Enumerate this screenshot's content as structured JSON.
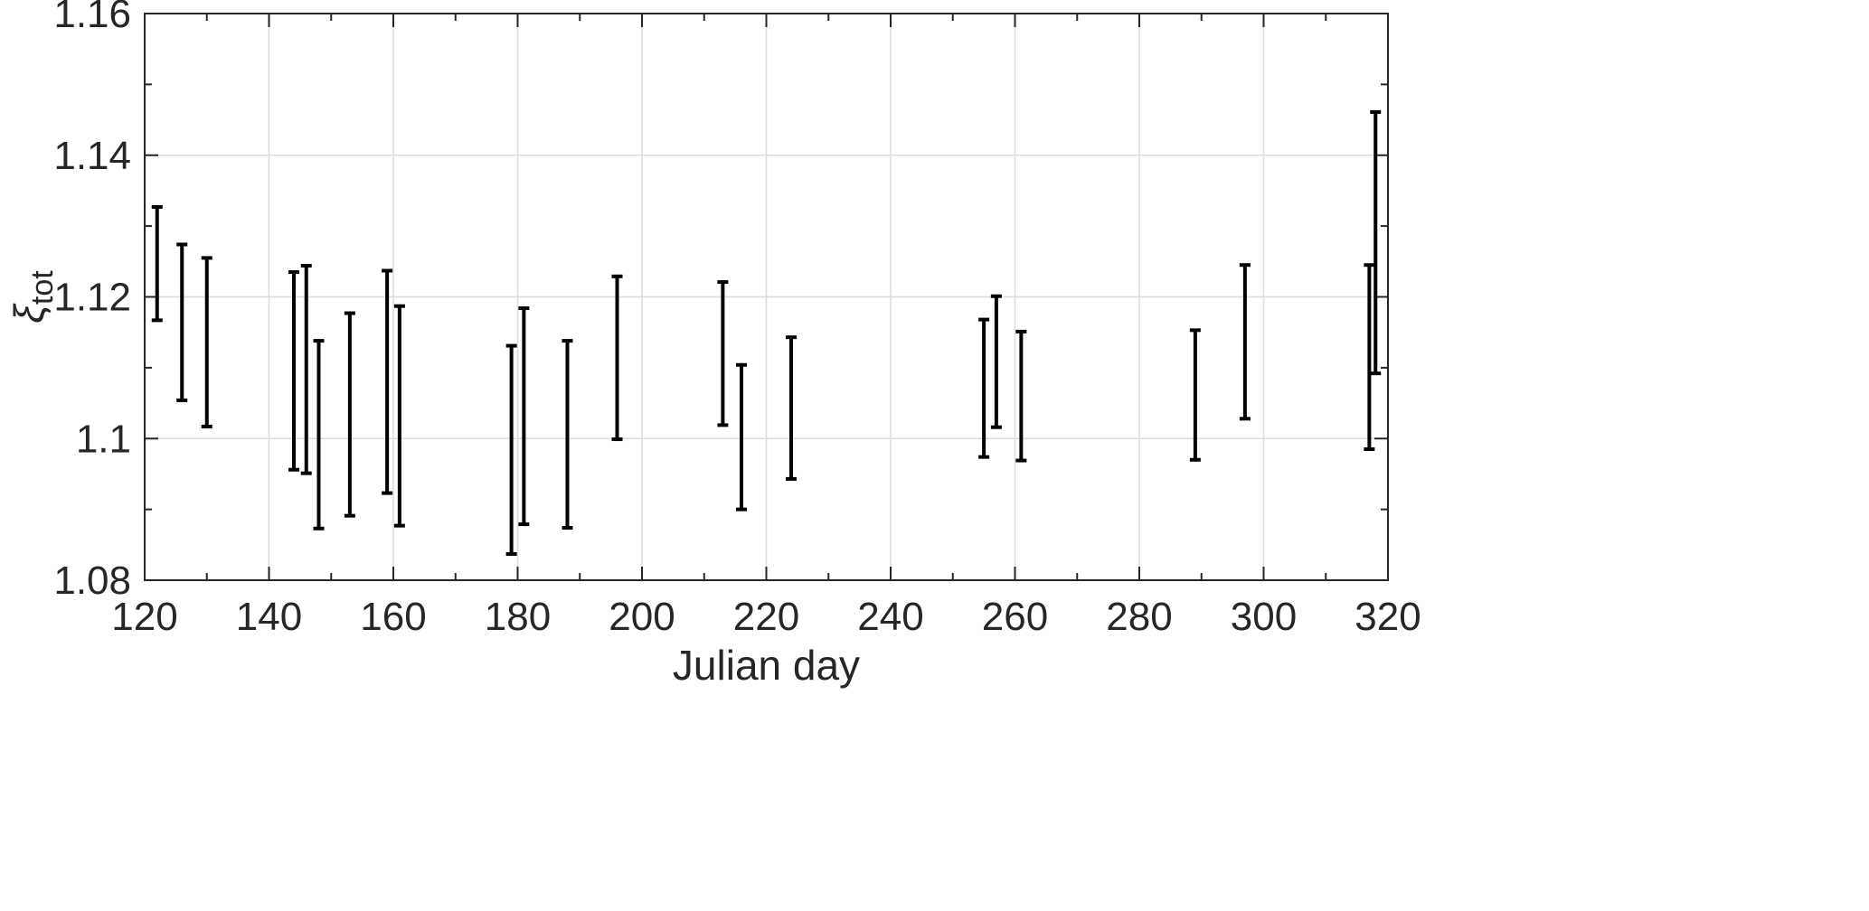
{
  "chart_data": {
    "type": "errorbar",
    "xlabel": "Julian day",
    "ylabel": {
      "symbol": "ξ",
      "subscript": "tot"
    },
    "xlim": [
      120,
      320
    ],
    "ylim": [
      1.08,
      1.16
    ],
    "xticks": [
      120,
      140,
      160,
      180,
      200,
      220,
      240,
      260,
      280,
      300,
      320
    ],
    "yticks": [
      1.08,
      1.1,
      1.12,
      1.14,
      1.16
    ],
    "xtick_labels": [
      "120",
      "140",
      "160",
      "180",
      "200",
      "220",
      "240",
      "260",
      "280",
      "300",
      "320"
    ],
    "ytick_labels": [
      "1.08",
      "1.1",
      "1.12",
      "1.14",
      "1.16"
    ],
    "grid": true,
    "color": "#000000",
    "points": [
      {
        "x": 122,
        "low": 1.1167,
        "high": 1.1327
      },
      {
        "x": 126,
        "low": 1.1054,
        "high": 1.1274
      },
      {
        "x": 130,
        "low": 1.1017,
        "high": 1.1255
      },
      {
        "x": 144,
        "low": 1.0956,
        "high": 1.1235
      },
      {
        "x": 146,
        "low": 1.0951,
        "high": 1.1244
      },
      {
        "x": 148,
        "low": 1.0873,
        "high": 1.1138
      },
      {
        "x": 153,
        "low": 1.0891,
        "high": 1.1177
      },
      {
        "x": 159,
        "low": 1.0923,
        "high": 1.1237
      },
      {
        "x": 161,
        "low": 1.0877,
        "high": 1.1187
      },
      {
        "x": 179,
        "low": 1.0837,
        "high": 1.1131
      },
      {
        "x": 181,
        "low": 1.0879,
        "high": 1.1184
      },
      {
        "x": 188,
        "low": 1.0874,
        "high": 1.1138
      },
      {
        "x": 196,
        "low": 1.0999,
        "high": 1.1229
      },
      {
        "x": 213,
        "low": 1.1019,
        "high": 1.1221
      },
      {
        "x": 216,
        "low": 1.09,
        "high": 1.1104
      },
      {
        "x": 224,
        "low": 1.0943,
        "high": 1.1143
      },
      {
        "x": 255,
        "low": 1.0974,
        "high": 1.1168
      },
      {
        "x": 257,
        "low": 1.1016,
        "high": 1.1201
      },
      {
        "x": 261,
        "low": 1.0969,
        "high": 1.1151
      },
      {
        "x": 289,
        "low": 1.097,
        "high": 1.1153
      },
      {
        "x": 297,
        "low": 1.1028,
        "high": 1.1245
      },
      {
        "x": 317,
        "low": 1.0985,
        "high": 1.1245
      },
      {
        "x": 318,
        "low": 1.1092,
        "high": 1.1461
      }
    ]
  }
}
